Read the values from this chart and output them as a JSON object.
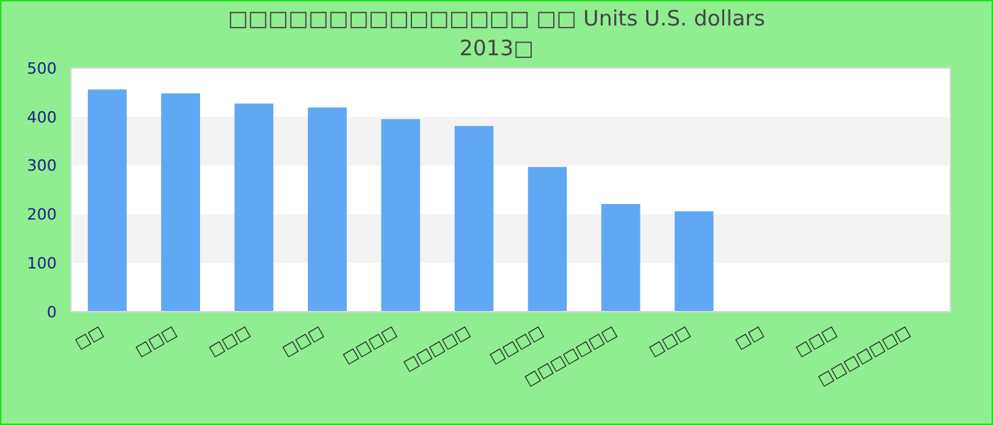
{
  "chart_data": {
    "type": "bar",
    "title": "□□□□□□□□□□□□□□□ □□ Units U.S. dollars",
    "subtitle": "2013□",
    "categories": [
      "□□",
      "□□□",
      "□□□",
      "□□□",
      "□□□□",
      "□□□□□",
      "□□□□",
      "□□□□□□□",
      "□□□",
      "□□",
      "□□□",
      "□□□□□□□"
    ],
    "values": [
      456,
      448,
      427,
      419,
      395,
      381,
      297,
      221,
      206,
      null,
      null,
      null
    ],
    "color": "#60a8f4",
    "ylim": [
      0,
      500
    ],
    "yticks": [
      0,
      100,
      200,
      300,
      400,
      500
    ],
    "bands": [
      {
        "axis": "y",
        "from": 100,
        "to": 200,
        "color": "#f3f3f3"
      },
      {
        "axis": "y",
        "from": 300,
        "to": 400,
        "color": "#f3f3f3"
      }
    ]
  }
}
